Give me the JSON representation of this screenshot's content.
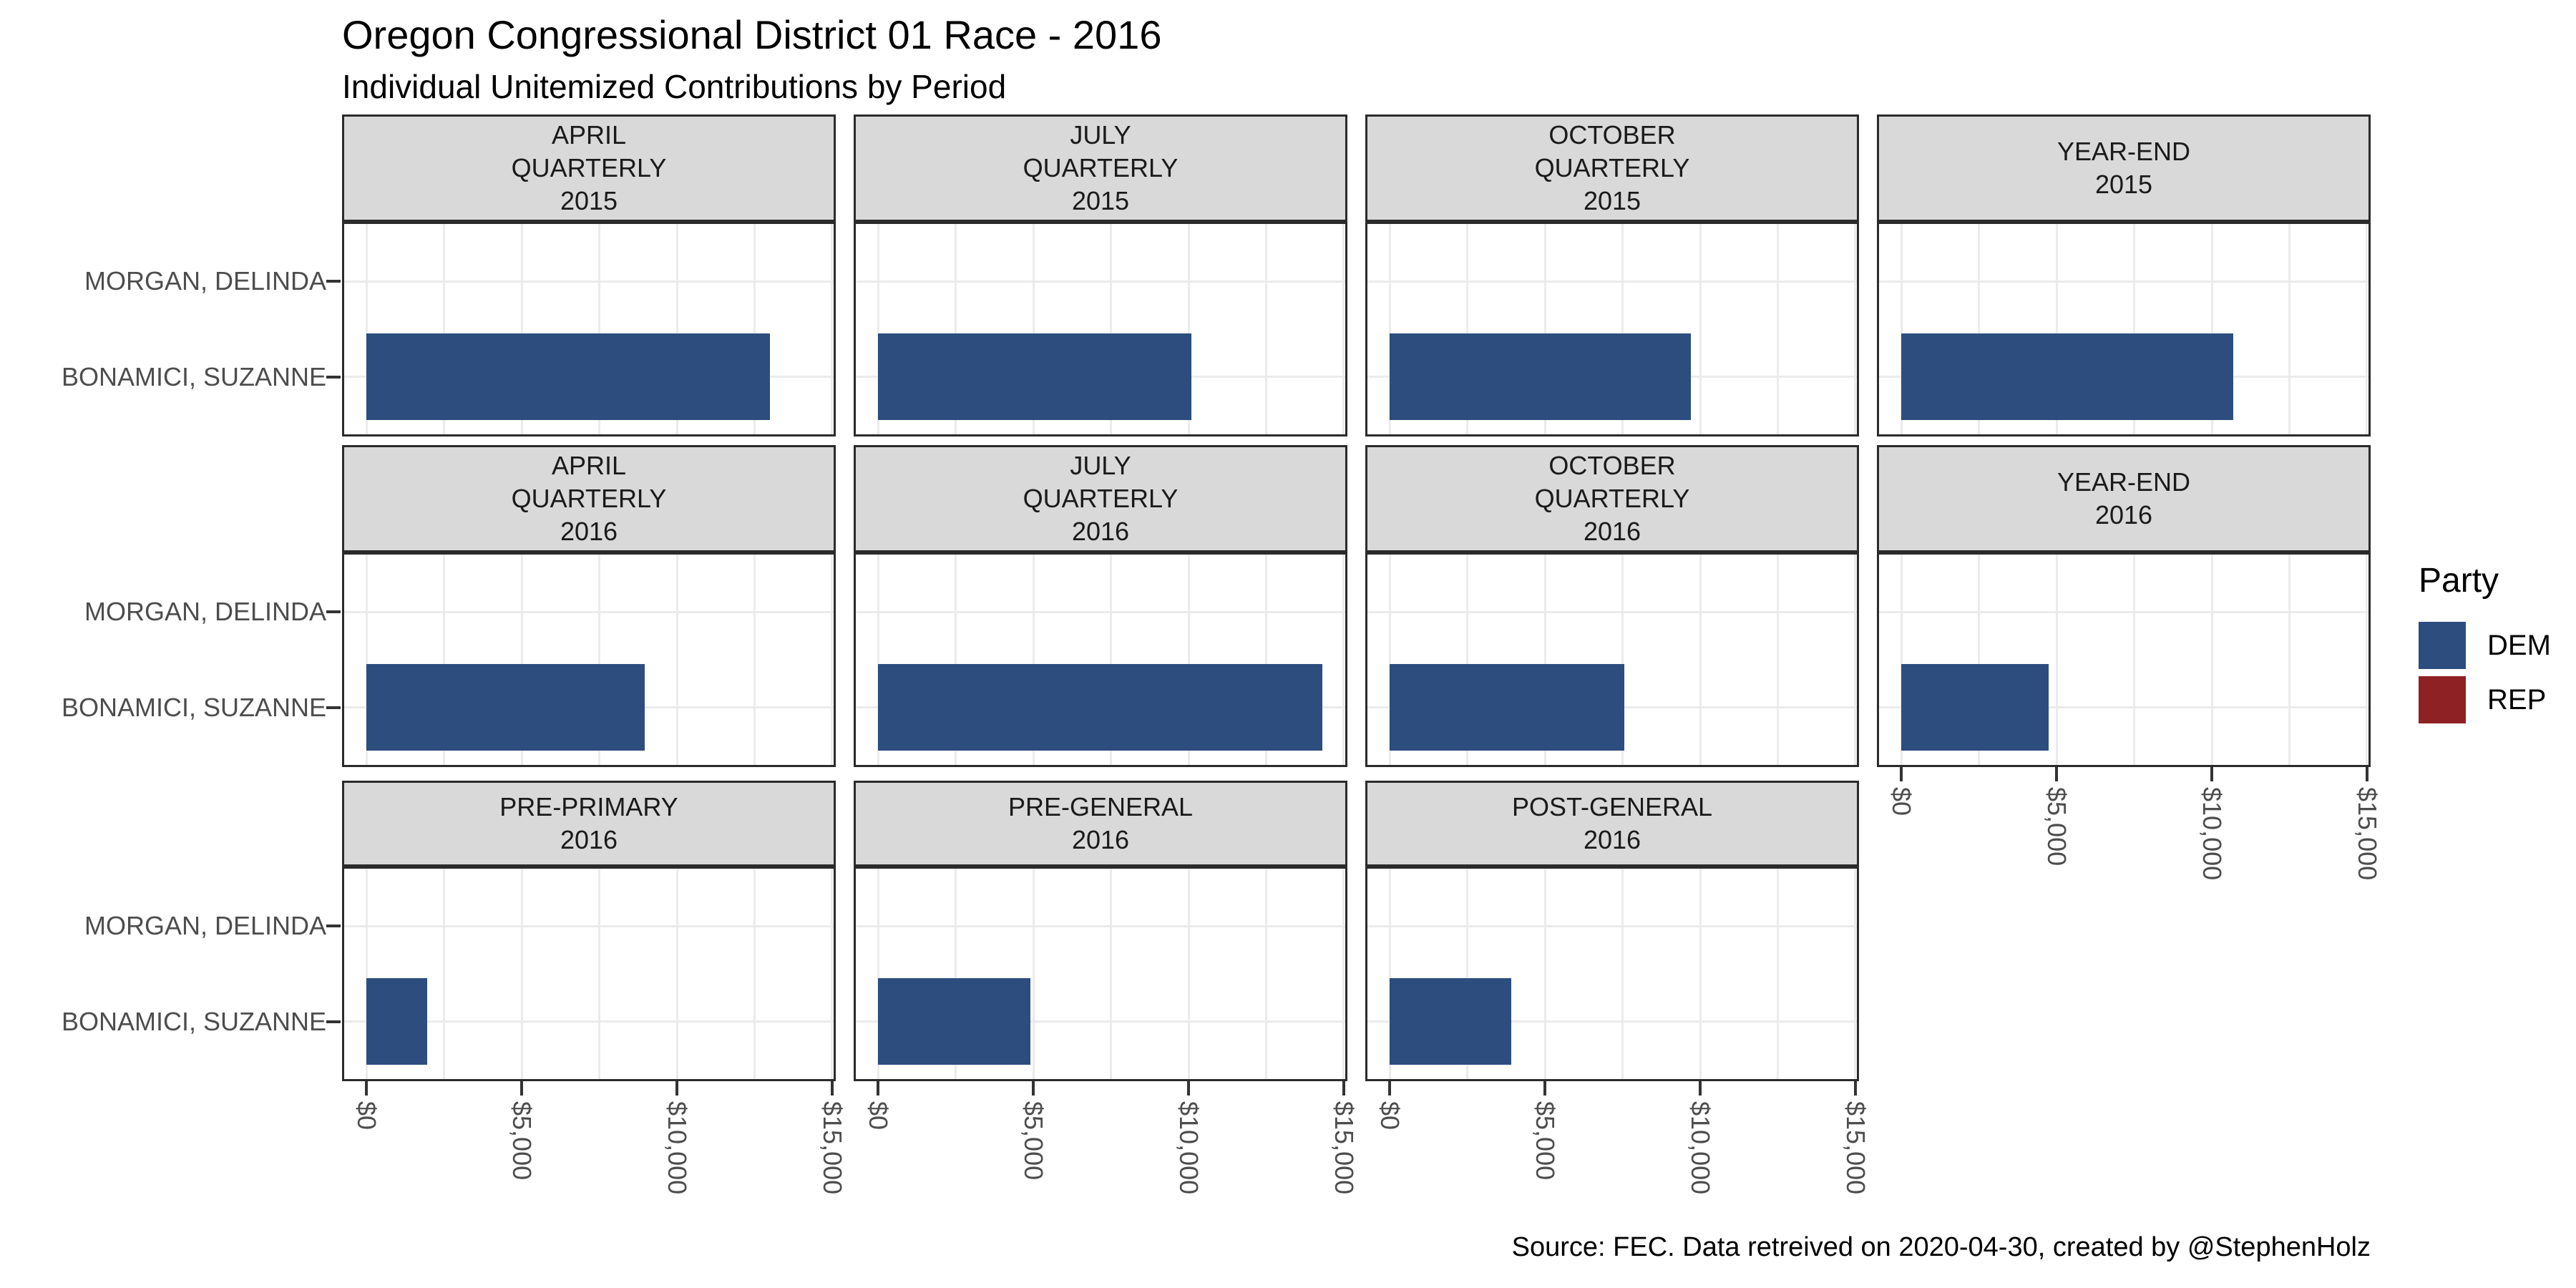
{
  "title": "Oregon Congressional District 01 Race - 2016",
  "subtitle": "Individual Unitemized Contributions by Period",
  "caption": "Source: FEC. Data retreived on 2020-04-30, created by @StephenHolz",
  "legend": {
    "title": "Party",
    "entries": [
      {
        "label": "DEM",
        "color": "#2C4D7E"
      },
      {
        "label": "REP",
        "color": "#8E2123"
      }
    ]
  },
  "chart_data": {
    "type": "bar",
    "orientation": "horizontal",
    "categories": [
      "MORGAN, DELINDA",
      "BONAMICI, SUZANNE"
    ],
    "party_of_candidate": {
      "MORGAN, DELINDA": "REP",
      "BONAMICI, SUZANNE": "DEM"
    },
    "x_axis": {
      "range": [
        0,
        15000
      ],
      "ticks": [
        0,
        5000,
        10000,
        15000
      ],
      "tick_labels": [
        "$0",
        "$5,000",
        "$10,000",
        "$15,000"
      ],
      "minor_step": 2500,
      "label_rotation_deg": 90
    },
    "grid": true,
    "legend_position": "right",
    "ncol": 4,
    "facets": [
      {
        "strip_lines": [
          "APRIL",
          "QUARTERLY",
          "2015"
        ],
        "show_x_axis": false,
        "values": {
          "MORGAN, DELINDA": 0,
          "BONAMICI, SUZANNE": 13000
        }
      },
      {
        "strip_lines": [
          "JULY",
          "QUARTERLY",
          "2015"
        ],
        "show_x_axis": false,
        "values": {
          "MORGAN, DELINDA": 0,
          "BONAMICI, SUZANNE": 10100
        }
      },
      {
        "strip_lines": [
          "OCTOBER",
          "QUARTERLY",
          "2015"
        ],
        "show_x_axis": false,
        "values": {
          "MORGAN, DELINDA": 0,
          "BONAMICI, SUZANNE": 9700
        }
      },
      {
        "strip_lines": [
          "YEAR-END",
          "2015"
        ],
        "show_x_axis": false,
        "values": {
          "MORGAN, DELINDA": 0,
          "BONAMICI, SUZANNE": 10700
        }
      },
      {
        "strip_lines": [
          "APRIL",
          "QUARTERLY",
          "2016"
        ],
        "show_x_axis": false,
        "values": {
          "MORGAN, DELINDA": 0,
          "BONAMICI, SUZANNE": 8950
        }
      },
      {
        "strip_lines": [
          "JULY",
          "QUARTERLY",
          "2016"
        ],
        "show_x_axis": false,
        "values": {
          "MORGAN, DELINDA": 0,
          "BONAMICI, SUZANNE": 14300
        }
      },
      {
        "strip_lines": [
          "OCTOBER",
          "QUARTERLY",
          "2016"
        ],
        "show_x_axis": false,
        "values": {
          "MORGAN, DELINDA": 0,
          "BONAMICI, SUZANNE": 7550
        }
      },
      {
        "strip_lines": [
          "YEAR-END",
          "2016"
        ],
        "show_x_axis": true,
        "values": {
          "MORGAN, DELINDA": 0,
          "BONAMICI, SUZANNE": 4750
        }
      },
      {
        "strip_lines": [
          "PRE-PRIMARY",
          "2016"
        ],
        "show_x_axis": true,
        "values": {
          "MORGAN, DELINDA": 0,
          "BONAMICI, SUZANNE": 1950
        }
      },
      {
        "strip_lines": [
          "PRE-GENERAL",
          "2016"
        ],
        "show_x_axis": true,
        "values": {
          "MORGAN, DELINDA": 0,
          "BONAMICI, SUZANNE": 4900
        }
      },
      {
        "strip_lines": [
          "POST-GENERAL",
          "2016"
        ],
        "show_x_axis": true,
        "values": {
          "MORGAN, DELINDA": 0,
          "BONAMICI, SUZANNE": 3900
        }
      }
    ]
  }
}
